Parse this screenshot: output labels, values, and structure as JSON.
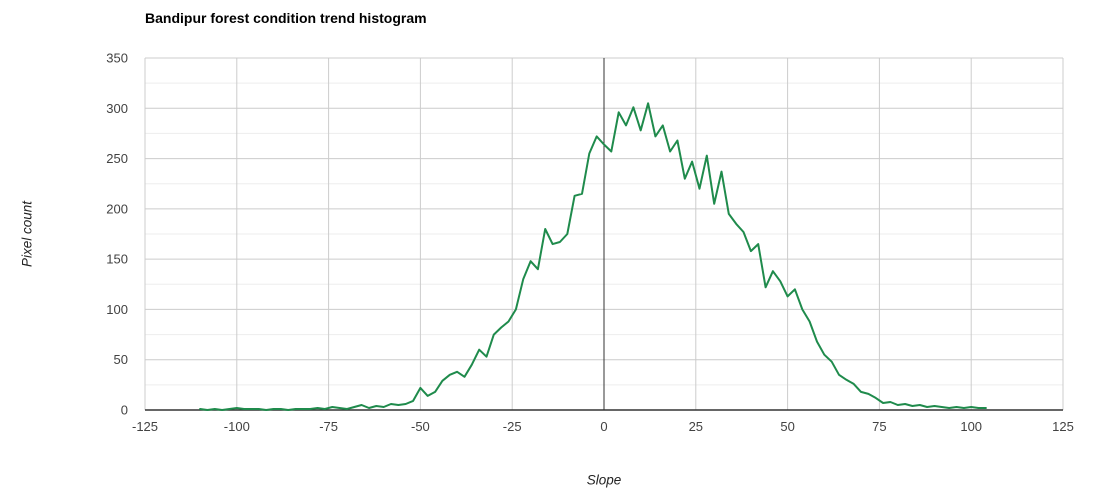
{
  "page": {
    "background": "#ffffff"
  },
  "chart_data": {
    "type": "line",
    "title": "Bandipur forest condition trend histogram",
    "xlabel": "Slope",
    "ylabel": "Pixel count",
    "xlim": [
      -125,
      125
    ],
    "ylim": [
      0,
      350
    ],
    "x_ticks": [
      -125,
      -100,
      -75,
      -50,
      -25,
      0,
      25,
      50,
      75,
      100,
      125
    ],
    "y_ticks": [
      0,
      50,
      100,
      150,
      200,
      250,
      300,
      350
    ],
    "y_minor_step": 25,
    "grid": true,
    "legend": "none",
    "zero_line_x": 0,
    "colors": {
      "line": "#1f8b4c",
      "grid_major": "#cccccc",
      "grid_minor": "#ededed",
      "axis": "#333333",
      "zero_line": "#333333",
      "tick_text": "#424242",
      "title_text": "#000000",
      "axis_title_text": "#222222"
    },
    "series": [
      {
        "name": "Pixel count",
        "color": "#1f8b4c",
        "x": [
          -110,
          -108,
          -106,
          -104,
          -102,
          -100,
          -98,
          -96,
          -94,
          -92,
          -90,
          -88,
          -86,
          -84,
          -82,
          -80,
          -78,
          -76,
          -74,
          -72,
          -70,
          -68,
          -66,
          -64,
          -62,
          -60,
          -58,
          -56,
          -54,
          -52,
          -50,
          -48,
          -46,
          -44,
          -42,
          -40,
          -38,
          -36,
          -34,
          -32,
          -30,
          -28,
          -26,
          -24,
          -22,
          -20,
          -18,
          -16,
          -14,
          -12,
          -10,
          -8,
          -6,
          -4,
          -2,
          0,
          2,
          4,
          6,
          8,
          10,
          12,
          14,
          16,
          18,
          20,
          22,
          24,
          26,
          28,
          30,
          32,
          34,
          36,
          38,
          40,
          42,
          44,
          46,
          48,
          50,
          52,
          54,
          56,
          58,
          60,
          62,
          64,
          66,
          68,
          70,
          72,
          74,
          76,
          78,
          80,
          82,
          84,
          86,
          88,
          90,
          92,
          94,
          96,
          98,
          100,
          102,
          104
        ],
        "values": [
          1,
          0,
          1,
          0,
          1,
          2,
          1,
          1,
          1,
          0,
          1,
          1,
          0,
          1,
          1,
          1,
          2,
          1,
          3,
          2,
          1,
          3,
          5,
          2,
          4,
          3,
          6,
          5,
          6,
          9,
          22,
          14,
          18,
          29,
          35,
          38,
          33,
          45,
          60,
          53,
          75,
          82,
          88,
          100,
          130,
          148,
          140,
          180,
          165,
          167,
          175,
          213,
          215,
          255,
          272,
          264,
          257,
          296,
          283,
          301,
          278,
          305,
          272,
          283,
          257,
          268,
          230,
          247,
          220,
          253,
          205,
          237,
          195,
          185,
          177,
          158,
          165,
          122,
          138,
          128,
          113,
          120,
          100,
          88,
          68,
          55,
          48,
          35,
          30,
          26,
          18,
          16,
          12,
          7,
          8,
          5,
          6,
          4,
          5,
          3,
          4,
          3,
          2,
          3,
          2,
          3,
          2,
          2
        ]
      }
    ]
  }
}
